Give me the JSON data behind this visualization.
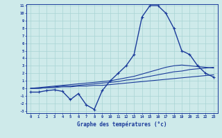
{
  "title": "Graphe des températures (°c)",
  "bg_color": "#ceeaea",
  "grid_color": "#a8d4d4",
  "line_color": "#1a3a9a",
  "x_hours": [
    0,
    1,
    2,
    3,
    4,
    5,
    6,
    7,
    8,
    9,
    10,
    11,
    12,
    13,
    14,
    15,
    16,
    17,
    18,
    19,
    20,
    21,
    22,
    23
  ],
  "temp_main": [
    -0.5,
    -0.5,
    -0.3,
    -0.2,
    -0.4,
    -1.5,
    -0.7,
    -2.2,
    -2.8,
    -0.3,
    1.0,
    2.0,
    3.0,
    4.5,
    9.5,
    11.0,
    11.0,
    10.0,
    8.0,
    5.0,
    4.5,
    3.0,
    2.0,
    1.5
  ],
  "temp_avg1": [
    0.0,
    0.0,
    0.1,
    0.1,
    0.2,
    0.2,
    0.3,
    0.3,
    0.4,
    0.4,
    0.5,
    0.6,
    0.7,
    0.8,
    0.9,
    1.0,
    1.1,
    1.2,
    1.3,
    1.4,
    1.5,
    1.6,
    1.7,
    1.8
  ],
  "temp_avg2": [
    0.0,
    0.0,
    0.1,
    0.2,
    0.3,
    0.3,
    0.4,
    0.5,
    0.6,
    0.7,
    0.8,
    0.9,
    1.1,
    1.2,
    1.4,
    1.6,
    1.8,
    2.0,
    2.2,
    2.3,
    2.5,
    2.6,
    2.7,
    2.8
  ],
  "temp_avg3": [
    0.0,
    0.1,
    0.2,
    0.3,
    0.4,
    0.5,
    0.6,
    0.7,
    0.8,
    0.9,
    1.0,
    1.2,
    1.4,
    1.6,
    1.9,
    2.2,
    2.5,
    2.8,
    3.0,
    3.1,
    3.0,
    2.9,
    2.8,
    2.7
  ],
  "ylim_min": -3,
  "ylim_max": 11,
  "yticks": [
    -3,
    -2,
    -1,
    0,
    1,
    2,
    3,
    4,
    5,
    6,
    7,
    8,
    9,
    10,
    11
  ]
}
